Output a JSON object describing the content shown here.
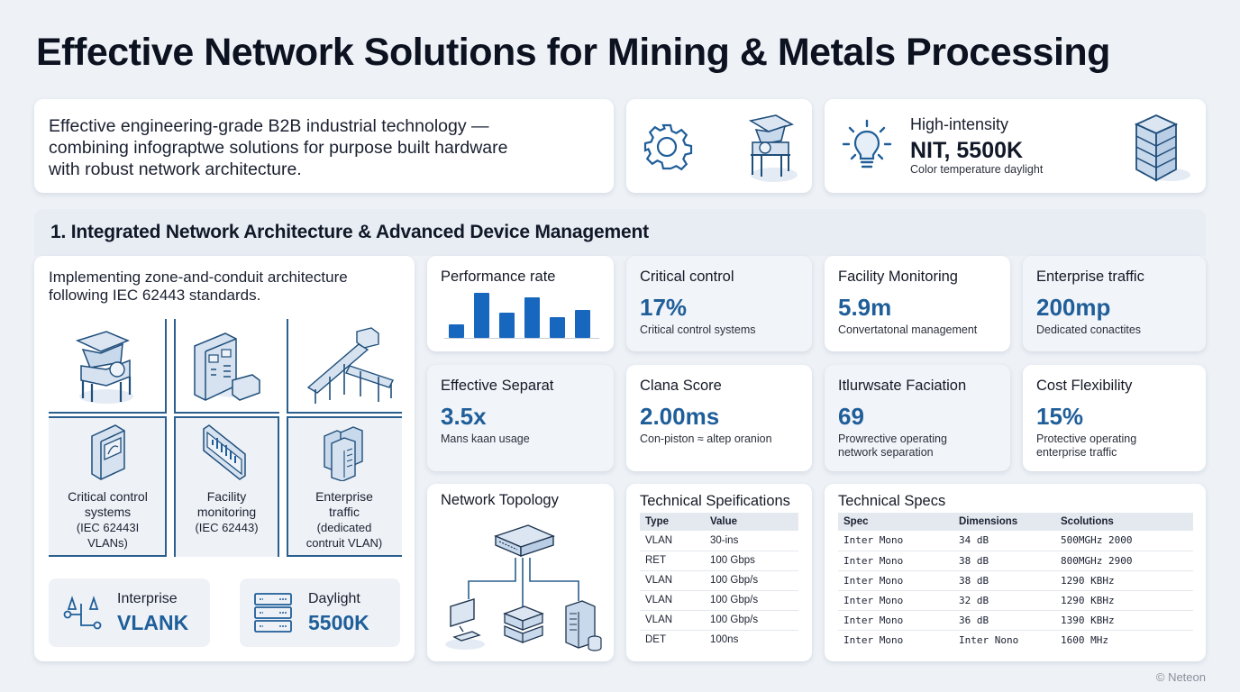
{
  "header": {
    "title": "Effective Network Solutions for Mining & Metals Processing"
  },
  "intro": {
    "lines": [
      "Effective engineering-grade B2B industrial technology —",
      "combining infograptwe solutions for purpose built hardware",
      "with robust network architecture."
    ]
  },
  "icon_card": {
    "icons": [
      "gear-icon",
      "crusher-machine-icon"
    ]
  },
  "highlight": {
    "label": "High-intensity",
    "value": "NIT, 5500K",
    "sub": "Color temperature daylight",
    "icons": [
      "lightbulb-icon",
      "server-stack-icon"
    ]
  },
  "section": {
    "title": "1. Integrated Network Architecture & Advanced Device Management"
  },
  "zones": {
    "text_lines": [
      "Implementing zone-and-conduit architecture",
      "following IEC 62443 standards."
    ],
    "top_icons": [
      "crusher-icon",
      "control-cabinet-icon",
      "conveyor-icon"
    ],
    "cells": [
      {
        "icon": "control-panel-icon",
        "lines": [
          "Critical control",
          "systems",
          "(IEC 62443I",
          "VLANs)"
        ]
      },
      {
        "icon": "monitor-chart-icon",
        "lines": [
          "Facility",
          "monitoring",
          "(IEC 62443)"
        ]
      },
      {
        "icon": "server-cluster-icon",
        "lines": [
          "Enterprise",
          "traffic",
          "(dedicated",
          "contruit VLAN)"
        ]
      }
    ],
    "badges": [
      {
        "icon": "network-vlan-icon",
        "label": "Interprise",
        "value": "VLANK"
      },
      {
        "icon": "server-rack-icon",
        "label": "Daylight",
        "value": "5500K"
      }
    ]
  },
  "performance": {
    "title": "Performance rate"
  },
  "chart_data": {
    "type": "bar",
    "title": "Performance rate",
    "categories": [
      "1",
      "2",
      "3",
      "4",
      "5",
      "6"
    ],
    "values": [
      30,
      100,
      56,
      90,
      47,
      63
    ],
    "xlabel": "",
    "ylabel": "",
    "ylim": [
      0,
      100
    ],
    "grid": false,
    "color": "#1767bf"
  },
  "metrics": [
    {
      "title": "Critical control",
      "value": "17%",
      "sub": [
        "Critical control systems"
      ]
    },
    {
      "title": "Facility Monitoring",
      "value": "5.9m",
      "sub": [
        "Convertatonal management"
      ]
    },
    {
      "title": "Enterprise traffic",
      "value": "200mp",
      "sub": [
        "Dedicated conactites"
      ]
    },
    {
      "title": "Effective Separat",
      "value": "3.5x",
      "sub": [
        "Mans kaan usage"
      ]
    },
    {
      "title": "Clana Score",
      "value": "2.00ms",
      "sub": [
        "Con-piston ≈ altep oranion"
      ]
    },
    {
      "title": "Itlurwsate Faciation",
      "value": "69",
      "sub": [
        "Prowrective operating",
        "network separation"
      ]
    },
    {
      "title": "Cost Flexibility",
      "value": "15%",
      "sub": [
        "Protective operating",
        "enterprise traffic"
      ]
    }
  ],
  "topology": {
    "title": "Network Topology",
    "icons": [
      "switch-icon",
      "desktop-computer-icon",
      "server-stack-icon",
      "server-tower-database-icon"
    ]
  },
  "tech_specifications": {
    "title": "Technical Speifications",
    "columns": [
      "Type",
      "Value"
    ],
    "rows": [
      [
        "VLAN",
        "30-ins"
      ],
      [
        "RET",
        "100 Gbps"
      ],
      [
        "VLAN",
        "100 Gbp/s"
      ],
      [
        "VLAN",
        "100 Gbp/s"
      ],
      [
        "VLAN",
        "100 Gbp/s"
      ],
      [
        "DET",
        "100ns"
      ]
    ]
  },
  "tech_specs": {
    "title": "Technical Specs",
    "columns": [
      "Spec",
      "Dimensions",
      "Scolutions"
    ],
    "rows": [
      [
        "Inter Mono",
        "34 dB",
        "500MGHz 2000"
      ],
      [
        "Inter Mono",
        "38 dB",
        "800MGHz 2900"
      ],
      [
        "Inter Mono",
        "38 dB",
        "1290 KBHz"
      ],
      [
        "Inter Mono",
        "32 dB",
        "1290 KBHz"
      ],
      [
        "Inter Mono",
        "36 dB",
        "1390 KBHz"
      ],
      [
        "Inter Mono",
        "Inter Nono",
        "1600 MHz"
      ]
    ]
  },
  "footer": {
    "text": "© Neteon"
  },
  "colors": {
    "accent": "#1f5e99",
    "bar": "#1767bf",
    "background": "#eef2f7"
  }
}
